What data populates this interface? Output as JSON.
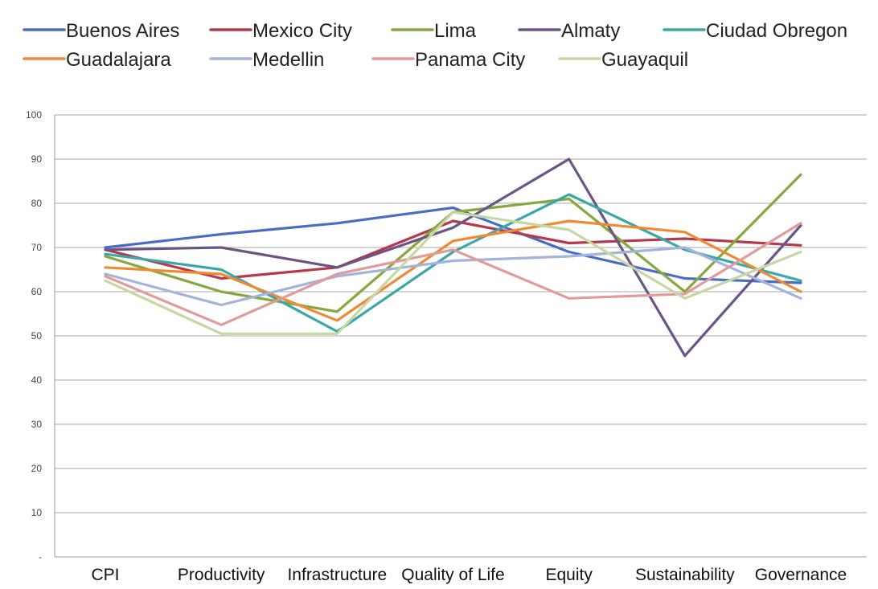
{
  "chart_data": {
    "type": "line",
    "title": "",
    "xlabel": "",
    "ylabel": "",
    "categories": [
      "CPI",
      "Productivity",
      "Infrastructure",
      "Quality of Life",
      "Equity",
      "Sustainability",
      "Governance"
    ],
    "ylim": [
      0,
      100
    ],
    "yticks": [
      0,
      10,
      20,
      30,
      40,
      50,
      60,
      70,
      80,
      90,
      100
    ],
    "ytick_labels": [
      "-",
      "10",
      "20",
      "30",
      "40",
      "50",
      "60",
      "70",
      "80",
      "90",
      "100"
    ],
    "grid": "horizontal",
    "legend_position": "top",
    "series": [
      {
        "name": "Buenos Aires",
        "color": "#4a6cc4",
        "values": [
          70,
          73,
          75.5,
          79,
          69,
          63,
          62
        ]
      },
      {
        "name": "Mexico City",
        "color": "#b5394b",
        "values": [
          69.5,
          63,
          65.5,
          76,
          71,
          72,
          70.5
        ]
      },
      {
        "name": "Lima",
        "color": "#86a83e",
        "values": [
          68,
          60,
          55.5,
          78,
          81,
          60,
          86.5
        ]
      },
      {
        "name": "Almaty",
        "color": "#6b5585",
        "values": [
          69.5,
          70,
          65.5,
          74.5,
          90,
          45.5,
          75
        ]
      },
      {
        "name": "Ciudad Obregon",
        "color": "#3aa7a8",
        "values": [
          68.5,
          65,
          51,
          69,
          82,
          69.5,
          62.5
        ]
      },
      {
        "name": "Guadalajara",
        "color": "#ef8a32",
        "values": [
          65.5,
          64,
          53.5,
          71.5,
          76,
          73.5,
          60
        ]
      },
      {
        "name": "Medellin",
        "color": "#a3b3db",
        "values": [
          64,
          57,
          63.5,
          67,
          68,
          70,
          58.5
        ]
      },
      {
        "name": "Panama City",
        "color": "#e09b9a",
        "values": [
          63.5,
          52.5,
          64,
          69.5,
          58.5,
          59.5,
          75.5
        ]
      },
      {
        "name": "Guayaquil",
        "color": "#c8d6a3",
        "values": [
          62.5,
          50.5,
          50.5,
          78,
          74,
          58.5,
          69
        ]
      }
    ]
  }
}
